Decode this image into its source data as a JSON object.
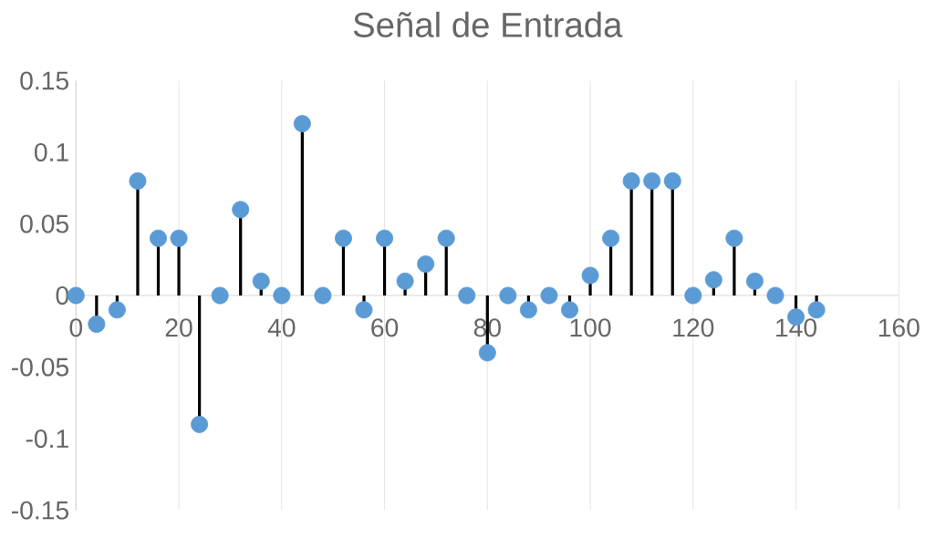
{
  "chart_data": {
    "type": "lollipop",
    "title": "Señal de Entrada",
    "x": [
      0,
      4,
      8,
      12,
      16,
      20,
      24,
      28,
      32,
      36,
      40,
      44,
      48,
      52,
      56,
      60,
      64,
      68,
      72,
      76,
      80,
      84,
      88,
      92,
      96,
      100,
      104,
      108,
      112,
      116,
      120,
      124,
      128,
      132,
      136,
      140,
      144
    ],
    "values": [
      0,
      -0.02,
      -0.01,
      0.08,
      0.04,
      0.04,
      -0.09,
      0,
      0.06,
      0.01,
      0,
      0.12,
      0,
      0.04,
      -0.01,
      0.04,
      0.01,
      0.022,
      0.04,
      0,
      -0.04,
      0,
      -0.01,
      0,
      -0.01,
      0.014,
      0.04,
      0.08,
      0.08,
      0.08,
      0,
      0.011,
      0.04,
      0.01,
      0,
      -0.015,
      -0.01
    ],
    "color": "#5b9bd5",
    "marker": "circle",
    "grid": "x",
    "xlim": [
      0,
      160
    ],
    "xticks": [
      0,
      20,
      40,
      60,
      80,
      100,
      120,
      140,
      160
    ],
    "ylim": [
      -0.15,
      0.15
    ],
    "yticks": [
      -0.15,
      -0.1,
      -0.05,
      0,
      0.05,
      0.1,
      0.15
    ]
  }
}
